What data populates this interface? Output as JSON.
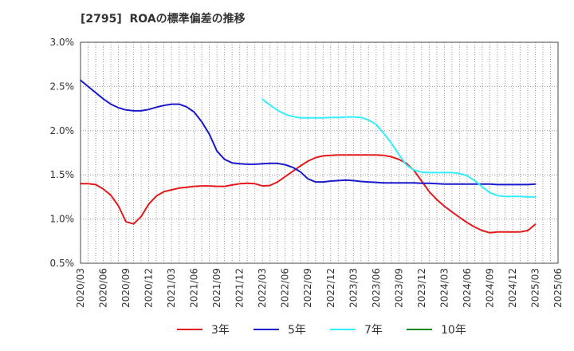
{
  "chart_data": {
    "type": "line",
    "title": "[2795]  ROAの標準偏差の推移",
    "xlabel": "",
    "ylabel": "",
    "ylim": [
      0.5,
      3.0
    ],
    "ytick_values": [
      0.5,
      1.0,
      1.5,
      2.0,
      2.5,
      3.0
    ],
    "yticks": [
      "0.5%",
      "1.0%",
      "1.5%",
      "2.0%",
      "2.5%",
      "3.0%"
    ],
    "xticks": [
      "2020/03",
      "2020/06",
      "2020/09",
      "2020/12",
      "2021/03",
      "2021/06",
      "2021/09",
      "2021/12",
      "2022/03",
      "2022/06",
      "2022/09",
      "2022/12",
      "2023/03",
      "2023/06",
      "2023/09",
      "2023/12",
      "2024/03",
      "2024/06",
      "2024/09",
      "2024/12",
      "2025/03",
      "2025/06"
    ],
    "months_per_tick": 3,
    "grid": true,
    "legend_position": "bottom",
    "series": [
      {
        "name": "3年",
        "color": "#e31a1c",
        "start_tick": 0,
        "values": [
          1.4,
          1.4,
          1.39,
          1.34,
          1.27,
          1.15,
          0.97,
          0.945,
          1.03,
          1.17,
          1.26,
          1.31,
          1.33,
          1.35,
          1.36,
          1.37,
          1.375,
          1.375,
          1.37,
          1.37,
          1.385,
          1.4,
          1.405,
          1.4,
          1.375,
          1.38,
          1.42,
          1.48,
          1.54,
          1.6,
          1.655,
          1.695,
          1.715,
          1.72,
          1.725,
          1.725,
          1.725,
          1.725,
          1.725,
          1.725,
          1.72,
          1.705,
          1.675,
          1.63,
          1.55,
          1.43,
          1.31,
          1.22,
          1.145,
          1.08,
          1.02,
          0.96,
          0.91,
          0.87,
          0.845,
          0.855,
          0.855,
          0.855,
          0.855,
          0.87,
          0.94
        ]
      },
      {
        "name": "5年",
        "color": "#1a1acc",
        "start_tick": 0,
        "values": [
          2.57,
          2.5,
          2.43,
          2.36,
          2.3,
          2.26,
          2.235,
          2.225,
          2.225,
          2.24,
          2.265,
          2.285,
          2.3,
          2.3,
          2.27,
          2.21,
          2.1,
          1.96,
          1.77,
          1.675,
          1.635,
          1.625,
          1.62,
          1.62,
          1.625,
          1.63,
          1.63,
          1.615,
          1.585,
          1.535,
          1.455,
          1.42,
          1.42,
          1.43,
          1.435,
          1.44,
          1.435,
          1.425,
          1.42,
          1.415,
          1.41,
          1.41,
          1.41,
          1.41,
          1.41,
          1.405,
          1.405,
          1.4,
          1.395,
          1.395,
          1.395,
          1.395,
          1.395,
          1.395,
          1.395,
          1.39,
          1.39,
          1.39,
          1.39,
          1.39,
          1.395
        ]
      },
      {
        "name": "7年",
        "color": "#33eeff",
        "start_tick": 8,
        "values": [
          2.355,
          2.29,
          2.23,
          2.185,
          2.16,
          2.145,
          2.145,
          2.145,
          2.145,
          2.15,
          2.15,
          2.155,
          2.155,
          2.15,
          2.12,
          2.07,
          1.97,
          1.86,
          1.73,
          1.61,
          1.555,
          1.53,
          1.525,
          1.525,
          1.525,
          1.525,
          1.515,
          1.49,
          1.435,
          1.365,
          1.3,
          1.265,
          1.255,
          1.255,
          1.255,
          1.25,
          1.25
        ]
      },
      {
        "name": "10年",
        "color": "#1b8a1b",
        "start_tick": 0,
        "values": []
      }
    ]
  }
}
